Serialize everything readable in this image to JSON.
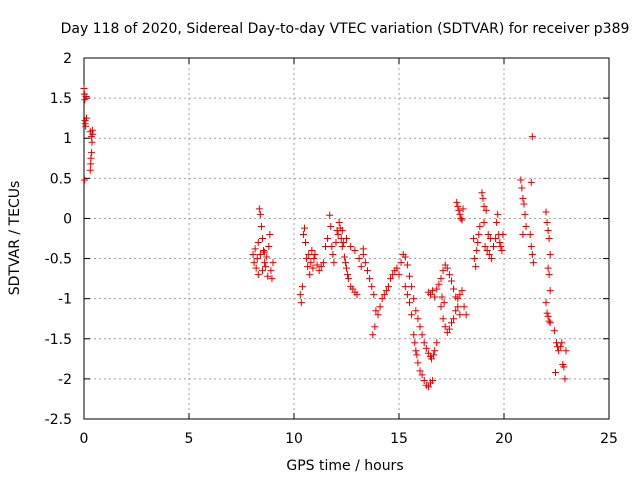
{
  "chart_data": {
    "type": "scatter",
    "title": "Day 118 of 2020, Sidereal Day-to-day VTEC variation (SDTVAR) for receiver p389",
    "xlabel": "GPS time / hours",
    "ylabel": "SDTVAR / TECUs",
    "xlim": [
      0,
      25
    ],
    "ylim": [
      -2.5,
      2
    ],
    "xticks": [
      0,
      5,
      10,
      15,
      20,
      25
    ],
    "xtick_labels": [
      "0",
      "5",
      "10",
      "15",
      "20",
      "25"
    ],
    "yticks": [
      -2.5,
      -2,
      -1.5,
      -1,
      -0.5,
      0,
      0.5,
      1,
      1.5,
      2
    ],
    "ytick_labels": [
      "-2.5",
      "-2",
      "-1.5",
      "-1",
      "-0.5",
      "0",
      "0.5",
      "1",
      "1.5",
      "2"
    ],
    "grid": true,
    "marker": "plus",
    "color": "#e00000",
    "series": [
      {
        "name": "SDTVAR",
        "points": [
          [
            0.0,
            1.62
          ],
          [
            0.02,
            1.55
          ],
          [
            0.04,
            1.48
          ],
          [
            0.05,
            1.22
          ],
          [
            0.06,
            1.18
          ],
          [
            0.08,
            1.15
          ],
          [
            0.1,
            1.52
          ],
          [
            0.12,
            1.25
          ],
          [
            0.03,
            0.48
          ],
          [
            0.3,
            1.08
          ],
          [
            0.35,
            1.02
          ],
          [
            0.38,
            0.95
          ],
          [
            0.4,
            1.1
          ],
          [
            0.36,
            0.82
          ],
          [
            0.33,
            0.75
          ],
          [
            0.3,
            0.6
          ],
          [
            0.32,
            0.68
          ],
          [
            0.42,
            1.05
          ],
          [
            8.05,
            -0.45
          ],
          [
            8.1,
            -0.55
          ],
          [
            8.15,
            -0.38
          ],
          [
            8.2,
            -0.62
          ],
          [
            8.25,
            -0.5
          ],
          [
            8.3,
            -0.7
          ],
          [
            8.35,
            0.12
          ],
          [
            8.4,
            0.05
          ],
          [
            8.45,
            -0.1
          ],
          [
            8.5,
            -0.25
          ],
          [
            8.55,
            -0.4
          ],
          [
            8.6,
            -0.55
          ],
          [
            8.65,
            -0.6
          ],
          [
            8.7,
            -0.48
          ],
          [
            8.75,
            -0.72
          ],
          [
            8.8,
            -0.35
          ],
          [
            8.85,
            -0.2
          ],
          [
            8.9,
            -0.65
          ],
          [
            8.95,
            -0.75
          ],
          [
            9.0,
            -0.55
          ],
          [
            8.3,
            -0.3
          ],
          [
            8.4,
            -0.45
          ],
          [
            8.5,
            -0.65
          ],
          [
            8.6,
            -0.42
          ],
          [
            10.3,
            -0.95
          ],
          [
            10.35,
            -1.05
          ],
          [
            10.4,
            -0.85
          ],
          [
            10.45,
            -0.2
          ],
          [
            10.5,
            -0.12
          ],
          [
            10.55,
            -0.3
          ],
          [
            10.6,
            -0.5
          ],
          [
            10.65,
            -0.6
          ],
          [
            10.7,
            -0.45
          ],
          [
            10.75,
            -0.7
          ],
          [
            10.8,
            -0.55
          ],
          [
            10.85,
            -0.4
          ],
          [
            10.9,
            -0.62
          ],
          [
            10.95,
            -0.5
          ],
          [
            11.0,
            -0.45
          ],
          [
            11.1,
            -0.58
          ],
          [
            11.2,
            -0.65
          ],
          [
            11.3,
            -0.6
          ],
          [
            11.4,
            -0.55
          ],
          [
            11.5,
            -0.35
          ],
          [
            11.6,
            -0.25
          ],
          [
            11.7,
            0.04
          ],
          [
            11.75,
            -0.1
          ],
          [
            11.8,
            -0.35
          ],
          [
            11.85,
            -0.45
          ],
          [
            11.9,
            -0.55
          ],
          [
            12.0,
            -0.3
          ],
          [
            12.05,
            -0.15
          ],
          [
            12.1,
            -0.2
          ],
          [
            12.15,
            -0.05
          ],
          [
            12.2,
            -0.12
          ],
          [
            12.25,
            -0.25
          ],
          [
            12.3,
            -0.35
          ],
          [
            12.35,
            -0.3
          ],
          [
            12.4,
            -0.48
          ],
          [
            12.45,
            -0.55
          ],
          [
            12.5,
            -0.62
          ],
          [
            12.55,
            -0.7
          ],
          [
            12.6,
            -0.75
          ],
          [
            12.7,
            -0.85
          ],
          [
            12.8,
            -0.88
          ],
          [
            12.9,
            -0.92
          ],
          [
            13.0,
            -0.95
          ],
          [
            12.3,
            -0.15
          ],
          [
            12.5,
            -0.25
          ],
          [
            12.7,
            -0.35
          ],
          [
            12.9,
            -0.4
          ],
          [
            13.1,
            -0.5
          ],
          [
            13.2,
            -0.6
          ],
          [
            13.3,
            -0.45
          ],
          [
            13.4,
            -0.55
          ],
          [
            13.5,
            -0.65
          ],
          [
            13.6,
            -0.75
          ],
          [
            13.7,
            -0.85
          ],
          [
            13.8,
            -0.95
          ],
          [
            13.9,
            -1.15
          ],
          [
            14.0,
            -1.2
          ],
          [
            14.1,
            -1.1
          ],
          [
            14.2,
            -1.0
          ],
          [
            14.3,
            -0.95
          ],
          [
            14.4,
            -0.9
          ],
          [
            14.5,
            -0.85
          ],
          [
            14.6,
            -0.75
          ],
          [
            14.7,
            -0.7
          ],
          [
            13.85,
            -1.35
          ],
          [
            13.75,
            -1.45
          ],
          [
            13.3,
            -0.38
          ],
          [
            14.8,
            -0.65
          ],
          [
            14.9,
            -0.62
          ],
          [
            15.0,
            -0.7
          ],
          [
            15.1,
            -0.55
          ],
          [
            15.2,
            -0.45
          ],
          [
            15.3,
            -0.48
          ],
          [
            15.4,
            -0.58
          ],
          [
            15.5,
            -0.72
          ],
          [
            15.6,
            -0.85
          ],
          [
            15.7,
            -1.0
          ],
          [
            15.8,
            -1.15
          ],
          [
            15.9,
            -1.25
          ],
          [
            16.0,
            -1.35
          ],
          [
            16.1,
            -1.45
          ],
          [
            16.2,
            -1.55
          ],
          [
            16.3,
            -1.62
          ],
          [
            16.4,
            -1.68
          ],
          [
            16.5,
            -1.72
          ],
          [
            15.3,
            -0.85
          ],
          [
            15.4,
            -0.95
          ],
          [
            15.5,
            -1.05
          ],
          [
            15.6,
            -1.2
          ],
          [
            15.7,
            -1.45
          ],
          [
            15.8,
            -1.65
          ],
          [
            15.9,
            -1.8
          ],
          [
            16.0,
            -1.9
          ],
          [
            16.1,
            -1.95
          ],
          [
            16.2,
            -2.02
          ],
          [
            16.3,
            -2.08
          ],
          [
            16.4,
            -2.1
          ],
          [
            16.5,
            -2.05
          ],
          [
            16.6,
            -2.02
          ],
          [
            15.75,
            -1.55
          ],
          [
            15.85,
            -1.7
          ],
          [
            16.7,
            -1.65
          ],
          [
            16.8,
            -1.55
          ],
          [
            16.55,
            -1.75
          ],
          [
            16.65,
            -1.7
          ],
          [
            16.4,
            -0.92
          ],
          [
            16.5,
            -0.95
          ],
          [
            16.6,
            -0.9
          ],
          [
            16.7,
            -0.98
          ],
          [
            16.8,
            -0.88
          ],
          [
            16.9,
            -0.82
          ],
          [
            17.0,
            -0.75
          ],
          [
            17.1,
            -0.65
          ],
          [
            17.2,
            -0.58
          ],
          [
            17.3,
            -0.62
          ],
          [
            17.4,
            -0.7
          ],
          [
            17.5,
            -0.78
          ],
          [
            17.6,
            -0.88
          ],
          [
            17.7,
            -0.98
          ],
          [
            17.8,
            -1.1
          ],
          [
            17.9,
            -1.2
          ],
          [
            17.0,
            -1.1
          ],
          [
            17.1,
            -1.25
          ],
          [
            17.2,
            -1.35
          ],
          [
            17.3,
            -1.42
          ],
          [
            17.4,
            -1.38
          ],
          [
            17.5,
            -1.3
          ],
          [
            17.6,
            -1.25
          ],
          [
            17.7,
            -1.15
          ],
          [
            17.8,
            -1.0
          ],
          [
            17.9,
            -0.95
          ],
          [
            18.0,
            -0.9
          ],
          [
            18.1,
            -1.1
          ],
          [
            18.2,
            -1.2
          ],
          [
            17.05,
            -0.98
          ],
          [
            17.15,
            -1.05
          ],
          [
            17.75,
            0.2
          ],
          [
            17.8,
            0.15
          ],
          [
            17.85,
            0.1
          ],
          [
            17.9,
            0.05
          ],
          [
            17.95,
            0.0
          ],
          [
            18.0,
            -0.02
          ],
          [
            18.05,
            0.12
          ],
          [
            18.55,
            -0.25
          ],
          [
            18.6,
            -0.5
          ],
          [
            18.65,
            -0.6
          ],
          [
            18.7,
            -0.4
          ],
          [
            18.75,
            -0.3
          ],
          [
            18.8,
            -0.2
          ],
          [
            18.85,
            -0.1
          ],
          [
            18.95,
            0.32
          ],
          [
            19.0,
            0.25
          ],
          [
            19.05,
            0.15
          ],
          [
            19.1,
            -0.35
          ],
          [
            19.2,
            -0.4
          ],
          [
            19.3,
            -0.45
          ],
          [
            19.4,
            -0.5
          ],
          [
            19.5,
            -0.35
          ],
          [
            19.6,
            -0.25
          ],
          [
            19.65,
            -0.05
          ],
          [
            19.7,
            0.05
          ],
          [
            19.75,
            -0.2
          ],
          [
            19.8,
            -0.3
          ],
          [
            19.85,
            -0.35
          ],
          [
            19.9,
            -0.4
          ],
          [
            19.95,
            -0.2
          ],
          [
            19.05,
            -0.05
          ],
          [
            19.15,
            0.1
          ],
          [
            19.25,
            -0.2
          ],
          [
            19.35,
            -0.25
          ],
          [
            20.8,
            0.48
          ],
          [
            20.85,
            0.38
          ],
          [
            20.9,
            0.25
          ],
          [
            20.95,
            0.18
          ],
          [
            21.0,
            0.05
          ],
          [
            21.05,
            -0.1
          ],
          [
            20.9,
            -0.2
          ],
          [
            21.35,
            1.02
          ],
          [
            21.3,
            0.45
          ],
          [
            21.25,
            -0.2
          ],
          [
            21.3,
            -0.35
          ],
          [
            21.35,
            -0.45
          ],
          [
            21.4,
            -0.55
          ],
          [
            22.0,
            0.08
          ],
          [
            22.05,
            -0.05
          ],
          [
            22.1,
            -0.15
          ],
          [
            22.15,
            -0.25
          ],
          [
            22.2,
            -0.45
          ],
          [
            22.1,
            -0.62
          ],
          [
            22.15,
            -0.7
          ],
          [
            22.2,
            -0.9
          ],
          [
            22.0,
            -1.05
          ],
          [
            22.05,
            -1.18
          ],
          [
            22.1,
            -1.22
          ],
          [
            22.15,
            -1.28
          ],
          [
            22.2,
            -1.3
          ],
          [
            22.4,
            -1.4
          ],
          [
            22.5,
            -1.55
          ],
          [
            22.55,
            -1.6
          ],
          [
            22.6,
            -1.65
          ],
          [
            22.7,
            -1.6
          ],
          [
            22.75,
            -1.55
          ],
          [
            22.8,
            -1.82
          ],
          [
            22.85,
            -1.85
          ],
          [
            22.9,
            -2.0
          ],
          [
            22.45,
            -1.92
          ],
          [
            22.95,
            -1.65
          ]
        ]
      }
    ]
  }
}
